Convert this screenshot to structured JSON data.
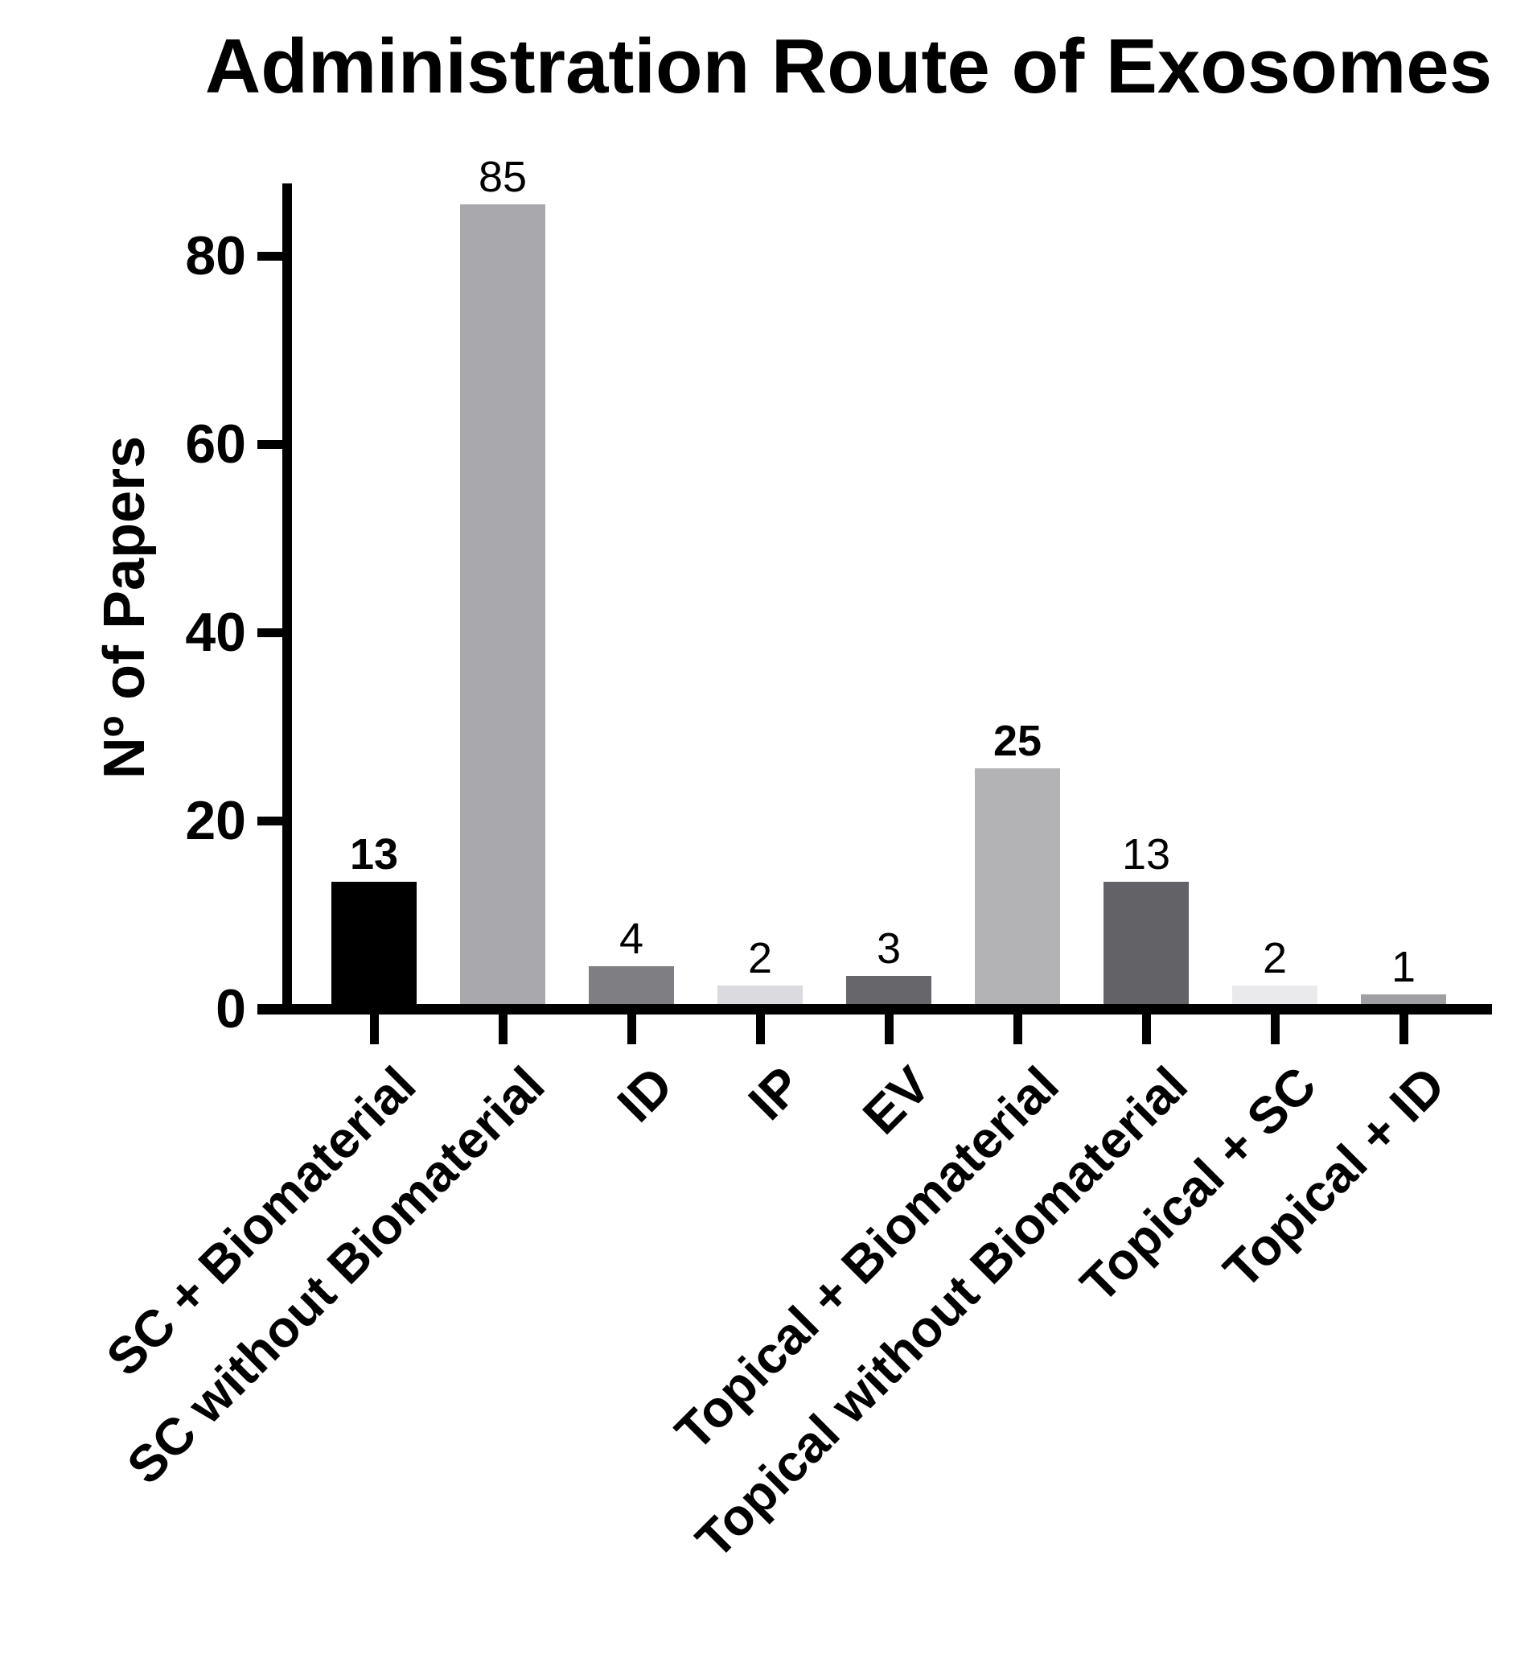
{
  "figure": {
    "title": "Administration Route of Exosomes"
  },
  "chart_data": {
    "type": "bar",
    "title": "Administration Route of Exosomes",
    "xlabel": "",
    "ylabel": "Nº of Papers",
    "ylim": [
      0,
      87
    ],
    "yticks": [
      0,
      20,
      40,
      60,
      80
    ],
    "grid": false,
    "legend": false,
    "categories": [
      "SC + Biomaterial",
      "SC without Biomaterial",
      "ID",
      "IP",
      "EV",
      "Topical + Biomaterial",
      "Topical without Biomaterial",
      "Topical + SC",
      "Topical + ID"
    ],
    "values": [
      13,
      85,
      4,
      2,
      3,
      25,
      13,
      2,
      1
    ],
    "value_labels": [
      "13",
      "85",
      "4",
      "2",
      "3",
      "25",
      "13",
      "2",
      "1"
    ],
    "value_label_bold": [
      true,
      false,
      false,
      false,
      false,
      true,
      false,
      false,
      false
    ],
    "bar_colors": [
      "#000000",
      "#a9a8ac",
      "#7f7e82",
      "#dbdade",
      "#67666a",
      "#b3b2b5",
      "#636266",
      "#eae9ec",
      "#a09fa3"
    ],
    "axis_color": "#000000",
    "text_color": "#000000",
    "background_color": "#ffffff"
  }
}
